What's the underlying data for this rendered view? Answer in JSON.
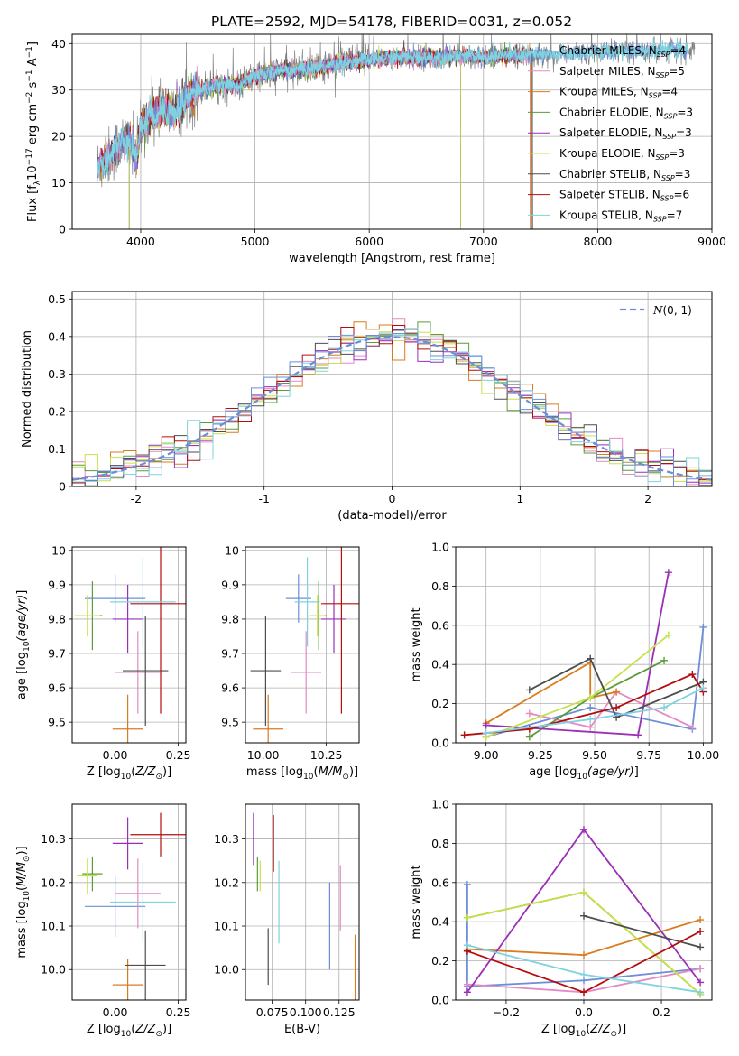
{
  "figure": {
    "title": "PLATE=2592, MJD=54178, FIBERID=0031, z=0.052"
  },
  "models": [
    {
      "name": "Chabrier MILES",
      "nssp": "4",
      "color": "#6c8ed8"
    },
    {
      "name": "Salpeter MILES",
      "nssp": "5",
      "color": "#e38ac4"
    },
    {
      "name": "Kroupa MILES",
      "nssp": "4",
      "color": "#d97c1e"
    },
    {
      "name": "Chabrier ELODIE",
      "nssp": "3",
      "color": "#5b9c3a"
    },
    {
      "name": "Salpeter ELODIE",
      "nssp": "3",
      "color": "#9b2fb5"
    },
    {
      "name": "Kroupa ELODIE",
      "nssp": "3",
      "color": "#c8e04a"
    },
    {
      "name": "Chabrier STELIB",
      "nssp": "3",
      "color": "#4d4d4d"
    },
    {
      "name": "Salpeter STELIB",
      "nssp": "6",
      "color": "#b50d0d"
    },
    {
      "name": "Kroupa STELIB",
      "nssp": "7",
      "color": "#7fd3df"
    }
  ],
  "chart_data": [
    {
      "id": "spectrum",
      "type": "line",
      "xlabel": "wavelength [Angstrom, rest frame]",
      "ylabel_prefix": "Flux [f",
      "xlim": [
        3400,
        9000
      ],
      "ylim": [
        0,
        42
      ],
      "xticks": [
        4000,
        5000,
        6000,
        7000,
        8000,
        9000
      ],
      "yticks": [
        0,
        10,
        20,
        30,
        40
      ],
      "continuum": [
        [
          3600,
          13
        ],
        [
          3700,
          15
        ],
        [
          3800,
          18
        ],
        [
          3900,
          20
        ],
        [
          3960,
          15
        ],
        [
          4000,
          22
        ],
        [
          4100,
          25
        ],
        [
          4200,
          26
        ],
        [
          4300,
          25
        ],
        [
          4400,
          28
        ],
        [
          4500,
          30
        ],
        [
          4700,
          31
        ],
        [
          4860,
          31
        ],
        [
          5000,
          33
        ],
        [
          5200,
          34
        ],
        [
          5400,
          34.5
        ],
        [
          5600,
          35
        ],
        [
          5800,
          36
        ],
        [
          6000,
          36.5
        ],
        [
          6200,
          37
        ],
        [
          6400,
          37
        ],
        [
          6600,
          37
        ],
        [
          6800,
          37.5
        ],
        [
          7000,
          37
        ],
        [
          7200,
          37.5
        ],
        [
          7400,
          37.5
        ],
        [
          7600,
          37.5
        ],
        [
          7800,
          38
        ],
        [
          8000,
          38
        ],
        [
          8200,
          38.5
        ],
        [
          8400,
          38.5
        ],
        [
          8600,
          38.5
        ],
        [
          8800,
          38.5
        ]
      ],
      "data_xrange": [
        3620,
        8850
      ],
      "model_end_wavelengths": [
        8800,
        7420,
        7410,
        7430,
        6800,
        6800,
        7430,
        7420,
        8800
      ],
      "elodie_start_wavelength": 3900
    },
    {
      "id": "residuals",
      "type": "bar",
      "xlabel": "(data-model)/error",
      "ylabel": "Normed distribution",
      "xlim": [
        -2.5,
        2.5
      ],
      "ylim": [
        0,
        0.52
      ],
      "xticks": [
        -2,
        -1,
        0,
        1,
        2
      ],
      "yticks": [
        0,
        0.1,
        0.2,
        0.3,
        0.4,
        0.5
      ],
      "bin_width": 0.1,
      "gaussian_label": "N(0,1)",
      "gaussian_color": "#6c8ed8"
    },
    {
      "id": "age-vs-z",
      "type": "scatter",
      "xlabel": "Z [log",
      "ylabel": "age  [log",
      "xlim": [
        -0.17,
        0.28
      ],
      "ylim": [
        9.44,
        10.01
      ],
      "xticks": [
        0.0,
        0.25
      ],
      "xticklabels": [
        "0.00",
        "0.25"
      ],
      "yticks": [
        9.5,
        9.6,
        9.7,
        9.8,
        9.9,
        10.0
      ],
      "points": [
        {
          "x": 0.0,
          "y": 9.86,
          "xerr": 0.12,
          "yerr": 0.07,
          "model": 0
        },
        {
          "x": 0.09,
          "y": 9.645,
          "xerr": 0.09,
          "yerr": 0.12,
          "model": 1
        },
        {
          "x": 0.05,
          "y": 9.48,
          "xerr": 0.06,
          "yerr": 0.1,
          "model": 2
        },
        {
          "x": -0.09,
          "y": 9.81,
          "xerr": 0.04,
          "yerr": 0.1,
          "model": 3
        },
        {
          "x": 0.05,
          "y": 9.8,
          "xerr": 0.06,
          "yerr": 0.1,
          "model": 4
        },
        {
          "x": -0.11,
          "y": 9.81,
          "xerr": 0.05,
          "yerr": 0.06,
          "model": 5
        },
        {
          "x": 0.12,
          "y": 9.65,
          "xerr": 0.09,
          "yerr": 0.16,
          "model": 6
        },
        {
          "x": 0.18,
          "y": 9.845,
          "xerr": 0.12,
          "yerr": 0.32,
          "model": 7
        },
        {
          "x": 0.11,
          "y": 9.85,
          "xerr": 0.13,
          "yerr": 0.13,
          "model": 8
        }
      ]
    },
    {
      "id": "age-vs-mass",
      "type": "scatter",
      "xlabel": "mass [log",
      "ylabel": "",
      "xlim": [
        9.93,
        10.38
      ],
      "ylim": [
        9.44,
        10.01
      ],
      "xticks": [
        10.0,
        10.25
      ],
      "xticklabels": [
        "10.00",
        "10.25"
      ],
      "yticks": [
        9.5,
        9.6,
        9.7,
        9.8,
        9.9,
        10.0
      ],
      "points": [
        {
          "x": 10.14,
          "y": 9.86,
          "xerr": 0.05,
          "yerr": 0.07,
          "model": 0
        },
        {
          "x": 10.17,
          "y": 9.645,
          "xerr": 0.06,
          "yerr": 0.12,
          "model": 1
        },
        {
          "x": 10.02,
          "y": 9.48,
          "xerr": 0.06,
          "yerr": 0.1,
          "model": 2
        },
        {
          "x": 10.22,
          "y": 9.81,
          "xerr": 0.03,
          "yerr": 0.1,
          "model": 3
        },
        {
          "x": 10.28,
          "y": 9.8,
          "xerr": 0.05,
          "yerr": 0.1,
          "model": 4
        },
        {
          "x": 10.215,
          "y": 9.81,
          "xerr": 0.03,
          "yerr": 0.06,
          "model": 5
        },
        {
          "x": 10.01,
          "y": 9.65,
          "xerr": 0.06,
          "yerr": 0.16,
          "model": 6
        },
        {
          "x": 10.31,
          "y": 9.845,
          "xerr": 0.08,
          "yerr": 0.32,
          "model": 7
        },
        {
          "x": 10.175,
          "y": 9.85,
          "xerr": 0.05,
          "yerr": 0.13,
          "model": 8
        }
      ]
    },
    {
      "id": "weight-vs-age",
      "type": "line",
      "xlabel": "age  [log",
      "ylabel": "mass weight",
      "xlim": [
        8.86,
        10.04
      ],
      "ylim": [
        0,
        1.0
      ],
      "xticks": [
        9.0,
        9.25,
        9.5,
        9.75,
        10.0
      ],
      "xticklabels": [
        "9.00",
        "9.25",
        "9.50",
        "9.75",
        "10.00"
      ],
      "yticks": [
        0,
        0.2,
        0.4,
        0.6,
        0.8,
        1.0
      ],
      "yticklabels": [
        "0.0",
        "0.2",
        "0.4",
        "0.6",
        "0.8",
        "1.0"
      ],
      "series": [
        {
          "model": 0,
          "x": [
            9.0,
            9.48,
            9.95,
            10.0
          ],
          "y": [
            0.03,
            0.18,
            0.07,
            0.59
          ]
        },
        {
          "model": 1,
          "x": [
            9.2,
            9.48,
            9.6,
            9.95
          ],
          "y": [
            0.15,
            0.08,
            0.26,
            0.08
          ]
        },
        {
          "model": 2,
          "x": [
            9.0,
            9.48,
            9.48,
            9.6
          ],
          "y": [
            0.1,
            0.41,
            0.23,
            0.26
          ]
        },
        {
          "model": 3,
          "x": [
            9.2,
            9.48,
            9.82
          ],
          "y": [
            0.03,
            0.23,
            0.42
          ]
        },
        {
          "model": 4,
          "x": [
            9.0,
            9.7,
            9.84
          ],
          "y": [
            0.09,
            0.04,
            0.87
          ]
        },
        {
          "model": 5,
          "x": [
            9.0,
            9.48,
            9.84
          ],
          "y": [
            0.03,
            0.23,
            0.55
          ]
        },
        {
          "model": 6,
          "x": [
            9.2,
            9.48,
            9.6,
            10.0
          ],
          "y": [
            0.27,
            0.43,
            0.13,
            0.31
          ]
        },
        {
          "model": 7,
          "x": [
            8.9,
            9.2,
            9.6,
            9.95,
            10.0
          ],
          "y": [
            0.04,
            0.07,
            0.18,
            0.35,
            0.26
          ]
        },
        {
          "model": 8,
          "x": [
            9.0,
            9.48,
            9.82,
            10.0
          ],
          "y": [
            0.05,
            0.12,
            0.18,
            0.28
          ]
        }
      ]
    },
    {
      "id": "mass-vs-z",
      "type": "scatter",
      "xlabel": "Z [log",
      "ylabel": "mass [log",
      "xlim": [
        -0.17,
        0.28
      ],
      "ylim": [
        9.93,
        10.38
      ],
      "xticks": [
        0.0,
        0.25
      ],
      "xticklabels": [
        "0.00",
        "0.25"
      ],
      "yticks": [
        10.0,
        10.1,
        10.2,
        10.3
      ],
      "yticklabels": [
        "10.0",
        "10.1",
        "10.2",
        "10.3"
      ],
      "points": [
        {
          "x": 0.0,
          "y": 10.145,
          "xerr": 0.12,
          "yerr": 0.07,
          "model": 0
        },
        {
          "x": 0.09,
          "y": 10.175,
          "xerr": 0.09,
          "yerr": 0.08,
          "model": 1
        },
        {
          "x": 0.05,
          "y": 9.965,
          "xerr": 0.06,
          "yerr": 0.06,
          "model": 2
        },
        {
          "x": -0.09,
          "y": 10.22,
          "xerr": 0.04,
          "yerr": 0.04,
          "model": 3
        },
        {
          "x": 0.05,
          "y": 10.29,
          "xerr": 0.06,
          "yerr": 0.06,
          "model": 4
        },
        {
          "x": -0.11,
          "y": 10.215,
          "xerr": 0.04,
          "yerr": 0.04,
          "model": 5
        },
        {
          "x": 0.12,
          "y": 10.01,
          "xerr": 0.08,
          "yerr": 0.08,
          "model": 6
        },
        {
          "x": 0.18,
          "y": 10.31,
          "xerr": 0.12,
          "yerr": 0.05,
          "model": 7
        },
        {
          "x": 0.11,
          "y": 10.155,
          "xerr": 0.13,
          "yerr": 0.09,
          "model": 8
        }
      ]
    },
    {
      "id": "mass-vs-ebv",
      "type": "scatter",
      "xlabel": "E(B-V)",
      "ylabel": "",
      "xlim": [
        0.055,
        0.14
      ],
      "ylim": [
        9.93,
        10.38
      ],
      "xticks": [
        0.075,
        0.1,
        0.125
      ],
      "xticklabels": [
        "0.075",
        "0.100",
        "0.125"
      ],
      "yticks": [
        10.0,
        10.1,
        10.2,
        10.3
      ],
      "yticklabels": [
        "10.0",
        "10.1",
        "10.2",
        "10.3"
      ],
      "points": [
        {
          "x": 0.118,
          "y": 10.1,
          "xerr": 0.0,
          "yerr": 0.1,
          "model": 0
        },
        {
          "x": 0.126,
          "y": 10.165,
          "xerr": 0.0,
          "yerr": 0.075,
          "model": 1
        },
        {
          "x": 0.137,
          "y": 9.955,
          "xerr": 0.0,
          "yerr": 0.125,
          "model": 2
        },
        {
          "x": 0.064,
          "y": 10.22,
          "xerr": 0.0,
          "yerr": 0.04,
          "model": 3
        },
        {
          "x": 0.061,
          "y": 10.3,
          "xerr": 0.0,
          "yerr": 0.06,
          "model": 4
        },
        {
          "x": 0.066,
          "y": 10.215,
          "xerr": 0.0,
          "yerr": 0.035,
          "model": 5
        },
        {
          "x": 0.072,
          "y": 10.03,
          "xerr": 0.0,
          "yerr": 0.065,
          "model": 6
        },
        {
          "x": 0.076,
          "y": 10.29,
          "xerr": 0.0,
          "yerr": 0.065,
          "model": 7
        },
        {
          "x": 0.08,
          "y": 10.155,
          "xerr": 0.0,
          "yerr": 0.095,
          "model": 8
        }
      ]
    },
    {
      "id": "weight-vs-z",
      "type": "line",
      "xlabel": "Z [log",
      "ylabel": "mass weight",
      "xlim": [
        -0.33,
        0.33
      ],
      "ylim": [
        0,
        1.0
      ],
      "xticks": [
        -0.2,
        0.0,
        0.2
      ],
      "xticklabels": [
        "−0.2",
        "0.0",
        "0.2"
      ],
      "yticks": [
        0,
        0.2,
        0.4,
        0.6,
        0.8,
        1.0
      ],
      "yticklabels": [
        "0.0",
        "0.2",
        "0.4",
        "0.6",
        "0.8",
        "1.0"
      ],
      "series": [
        {
          "model": 0,
          "x": [
            -0.3,
            -0.3,
            0.0,
            0.3
          ],
          "y": [
            0.59,
            0.07,
            0.1,
            0.16
          ]
        },
        {
          "model": 1,
          "x": [
            -0.3,
            0.0,
            0.3
          ],
          "y": [
            0.08,
            0.04,
            0.16
          ]
        },
        {
          "model": 2,
          "x": [
            -0.3,
            0.0,
            0.3
          ],
          "y": [
            0.26,
            0.23,
            0.41
          ]
        },
        {
          "model": 3,
          "x": [
            -0.3,
            0.0,
            0.3
          ],
          "y": [
            0.42,
            0.55,
            0.03
          ]
        },
        {
          "model": 4,
          "x": [
            -0.3,
            0.0,
            0.3
          ],
          "y": [
            0.04,
            0.87,
            0.09
          ]
        },
        {
          "model": 5,
          "x": [
            -0.3,
            0.0,
            0.3
          ],
          "y": [
            0.42,
            0.55,
            0.03
          ]
        },
        {
          "model": 6,
          "x": [
            0.0,
            0.3
          ],
          "y": [
            0.43,
            0.27
          ]
        },
        {
          "model": 7,
          "x": [
            -0.3,
            0.0,
            0.3
          ],
          "y": [
            0.25,
            0.04,
            0.35
          ]
        },
        {
          "model": 8,
          "x": [
            -0.3,
            0.0,
            0.3
          ],
          "y": [
            0.28,
            0.13,
            0.04
          ]
        }
      ]
    }
  ]
}
